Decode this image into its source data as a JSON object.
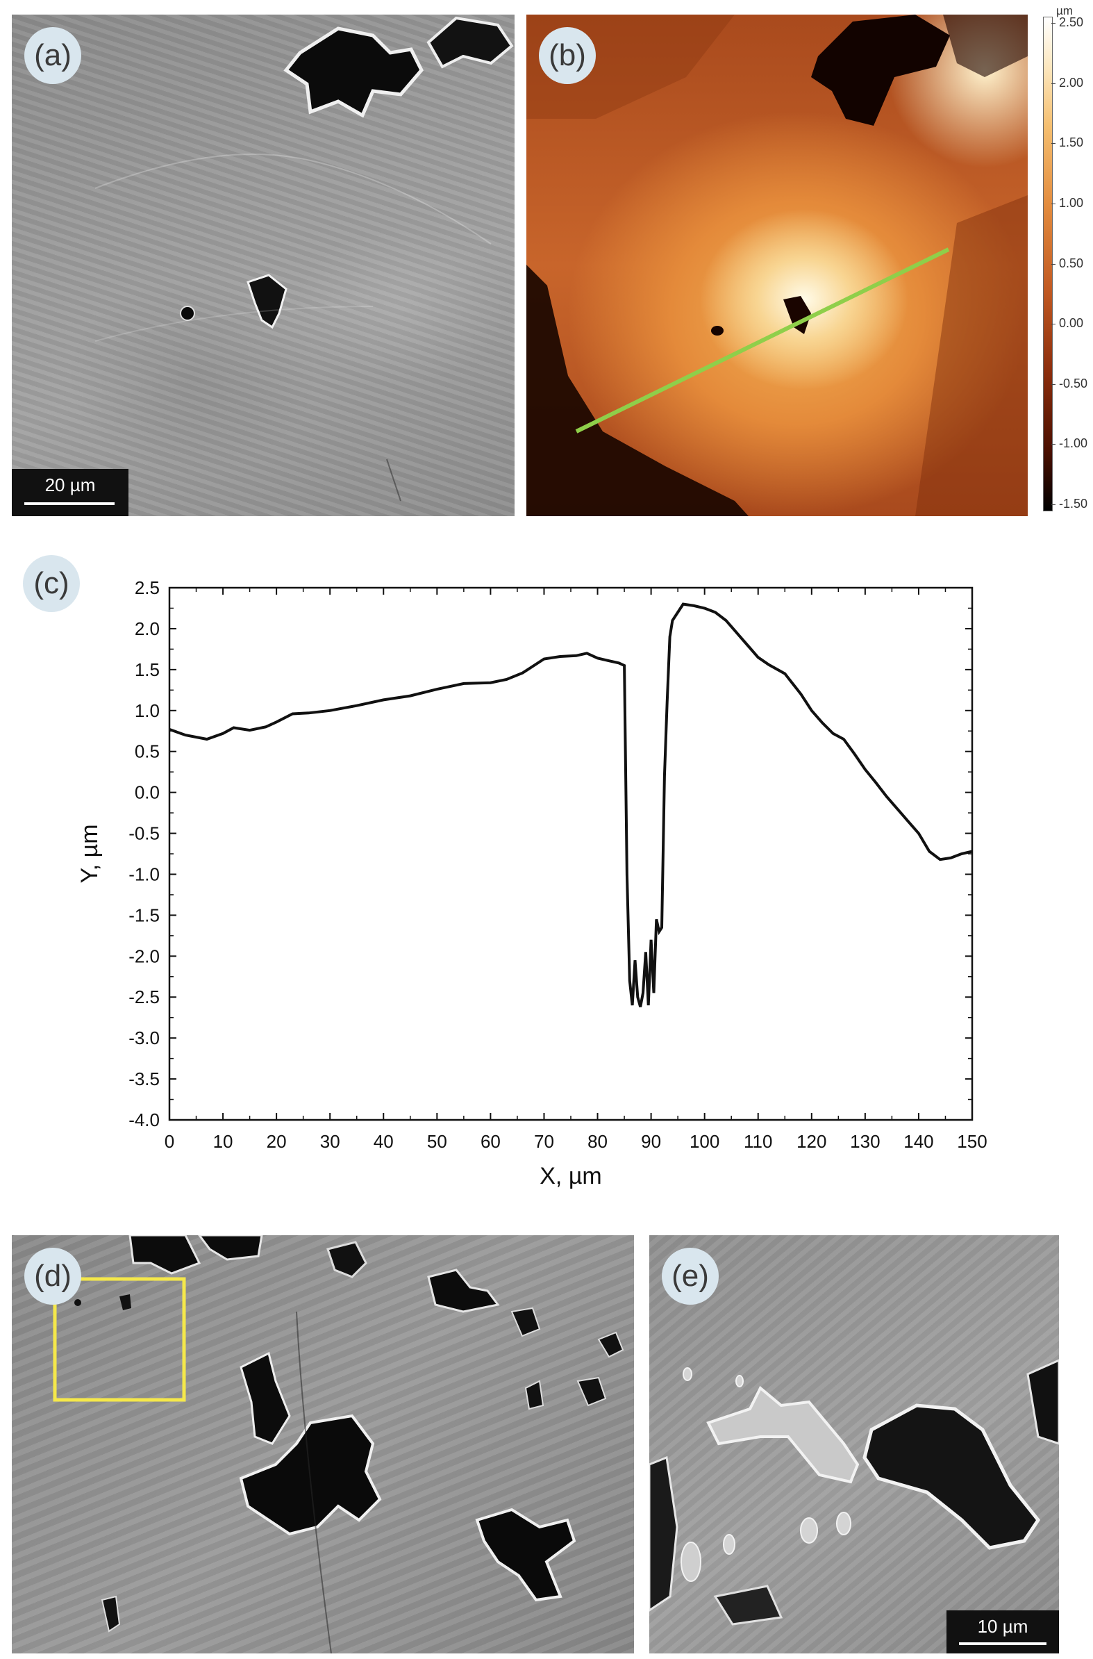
{
  "figure": {
    "panels": {
      "a": {
        "label": "(a)",
        "scale_bar": "20 µm"
      },
      "b": {
        "label": "(b)",
        "colorbar": {
          "unit": "µm",
          "ticks": [
            "2.50",
            "2.00",
            "1.50",
            "1.00",
            "0.50",
            "0.00",
            "-0.50",
            "-1.00",
            "-1.50"
          ]
        },
        "profile_line_color": "#8fcf4a"
      },
      "c": {
        "label": "(c)"
      },
      "d": {
        "label": "(d)",
        "highlight_box_color": "#f5e84a"
      },
      "e": {
        "label": "(e)",
        "scale_bar": "10 µm"
      }
    }
  },
  "chart_data": {
    "type": "line",
    "title": "",
    "xlabel": "X, µm",
    "ylabel": "Y, µm",
    "xlim": [
      0,
      150
    ],
    "ylim": [
      -4.0,
      2.5
    ],
    "xticks": [
      "0",
      "10",
      "20",
      "30",
      "40",
      "50",
      "60",
      "70",
      "80",
      "90",
      "100",
      "110",
      "120",
      "130",
      "140",
      "150"
    ],
    "yticks": [
      "2.5",
      "2.0",
      "1.5",
      "1.0",
      "0.5",
      "0.0",
      "-0.5",
      "-1.0",
      "-1.5",
      "-2.0",
      "-2.5",
      "-3.0",
      "-3.5",
      "-4.0"
    ],
    "grid": false,
    "series": [
      {
        "color": "#111111",
        "x": [
          0,
          3,
          7,
          10,
          12,
          15,
          18,
          20,
          23,
          26,
          30,
          35,
          40,
          45,
          50,
          55,
          60,
          63,
          66,
          70,
          73,
          76,
          78,
          80,
          82,
          84,
          85,
          85.5,
          86,
          86.5,
          87,
          87.5,
          88,
          88.5,
          89,
          89.5,
          90,
          90.5,
          91,
          91.5,
          92,
          92.5,
          93,
          93.5,
          94,
          95,
          96,
          98,
          100,
          102,
          104,
          106,
          108,
          110,
          112,
          115,
          118,
          120,
          122,
          124,
          126,
          128,
          130,
          132,
          134,
          136,
          138,
          140,
          142,
          144,
          146,
          148,
          150
        ],
        "y": [
          0.77,
          0.7,
          0.65,
          0.72,
          0.79,
          0.76,
          0.8,
          0.86,
          0.96,
          0.97,
          1.0,
          1.06,
          1.13,
          1.18,
          1.26,
          1.33,
          1.34,
          1.38,
          1.46,
          1.63,
          1.66,
          1.67,
          1.7,
          1.64,
          1.61,
          1.58,
          1.55,
          -1.0,
          -2.3,
          -2.6,
          -2.05,
          -2.5,
          -2.62,
          -2.45,
          -1.95,
          -2.6,
          -1.8,
          -2.45,
          -1.55,
          -1.7,
          -1.65,
          0.2,
          1.1,
          1.9,
          2.1,
          2.2,
          2.3,
          2.28,
          2.25,
          2.2,
          2.1,
          1.95,
          1.8,
          1.65,
          1.56,
          1.45,
          1.2,
          1.0,
          0.85,
          0.72,
          0.65,
          0.47,
          0.28,
          0.12,
          -0.05,
          -0.2,
          -0.35,
          -0.5,
          -0.72,
          -0.82,
          -0.8,
          -0.75,
          -0.72
        ]
      }
    ]
  }
}
